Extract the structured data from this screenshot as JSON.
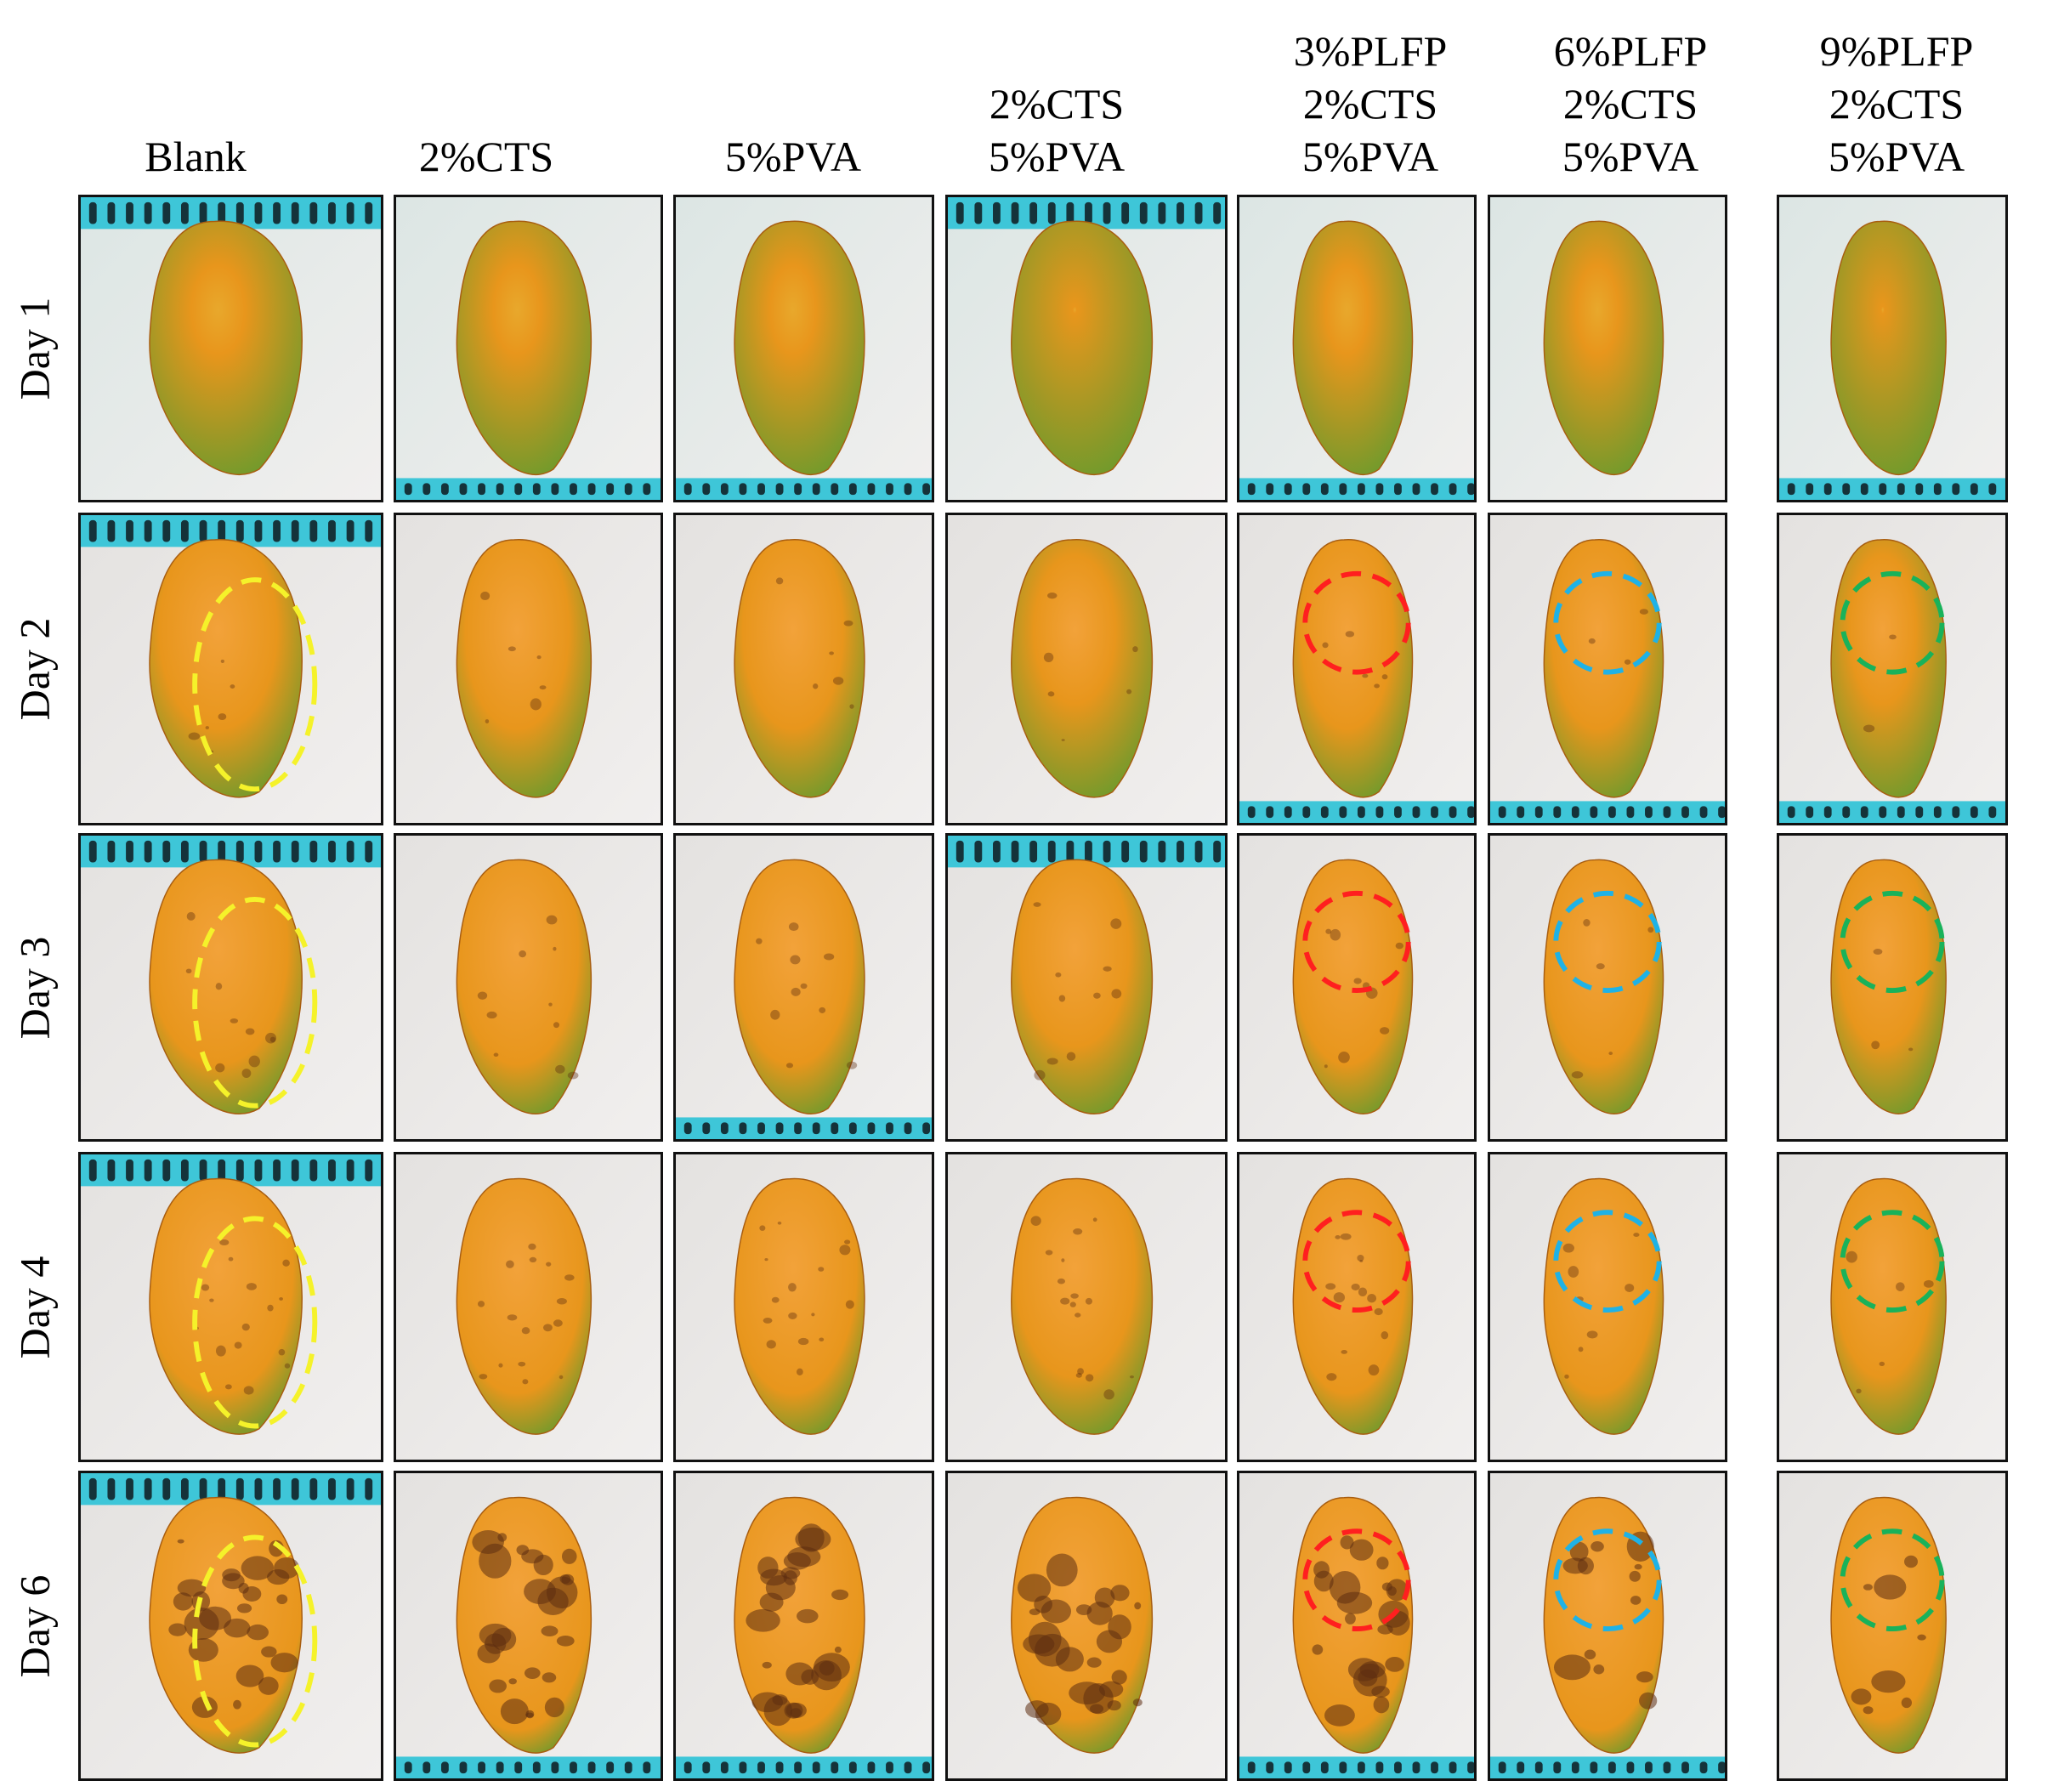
{
  "column_headers": [
    {
      "lines": [
        "Blank"
      ]
    },
    {
      "lines": [
        "2%CTS"
      ]
    },
    {
      "lines": [
        "5%PVA"
      ]
    },
    {
      "lines": [
        "2%CTS",
        "5%PVA"
      ]
    },
    {
      "lines": [
        "3%PLFP",
        "2%CTS",
        "5%PVA"
      ]
    },
    {
      "lines": [
        "6%PLFP",
        "2%CTS",
        "5%PVA"
      ]
    },
    {
      "lines": [
        "9%PLFP",
        "2%CTS",
        "5%PVA"
      ]
    }
  ],
  "row_labels": [
    "Day 1",
    "Day 2",
    "Day 3",
    "Day 4",
    "Day 6"
  ],
  "colors": {
    "blank_circle": "#f5f22a",
    "plfp3_circle": "#ff1f1f",
    "plfp6_circle": "#1fb2e6",
    "plfp9_circle": "#19b25a",
    "basket": "#3ec6d8",
    "paper": "#dfe7e3",
    "mango_ripe": "#e8961c",
    "mango_green": "#6f9a2c",
    "spot": "#5c2d10"
  },
  "photos": [
    [
      {
        "stage": 0,
        "basket": "top",
        "circle": null
      },
      {
        "stage": 0,
        "basket": "bottom",
        "circle": null
      },
      {
        "stage": 0,
        "basket": "bottom",
        "circle": null
      },
      {
        "stage": 0,
        "basket": "top",
        "circle": null
      },
      {
        "stage": 0,
        "basket": "bottom",
        "circle": null
      },
      {
        "stage": 0,
        "basket": "none",
        "circle": null
      },
      {
        "stage": 0,
        "basket": "bottom",
        "circle": null
      }
    ],
    [
      {
        "stage": 1,
        "basket": "top",
        "circle": "blank"
      },
      {
        "stage": 1,
        "basket": "none",
        "circle": null
      },
      {
        "stage": 1,
        "basket": "none",
        "circle": null
      },
      {
        "stage": 1,
        "basket": "none",
        "circle": null
      },
      {
        "stage": 1,
        "basket": "bottom",
        "circle": "plfp3"
      },
      {
        "stage": 1,
        "basket": "bottom",
        "circle": "plfp6"
      },
      {
        "stage": 1,
        "basket": "bottom",
        "circle": "plfp9"
      }
    ],
    [
      {
        "stage": 2,
        "basket": "top",
        "circle": "blank"
      },
      {
        "stage": 2,
        "basket": "none",
        "circle": null
      },
      {
        "stage": 2,
        "basket": "bottom",
        "circle": null
      },
      {
        "stage": 2,
        "basket": "top",
        "circle": null
      },
      {
        "stage": 2,
        "basket": "none",
        "circle": "plfp3"
      },
      {
        "stage": 2,
        "basket": "none",
        "circle": "plfp6"
      },
      {
        "stage": 2,
        "basket": "none",
        "circle": "plfp9"
      }
    ],
    [
      {
        "stage": 3,
        "basket": "top",
        "circle": "blank"
      },
      {
        "stage": 3,
        "basket": "none",
        "circle": null
      },
      {
        "stage": 3,
        "basket": "none",
        "circle": null
      },
      {
        "stage": 3,
        "basket": "none",
        "circle": null
      },
      {
        "stage": 3,
        "basket": "none",
        "circle": "plfp3"
      },
      {
        "stage": 3,
        "basket": "none",
        "circle": "plfp6"
      },
      {
        "stage": 3,
        "basket": "none",
        "circle": "plfp9"
      }
    ],
    [
      {
        "stage": 4,
        "basket": "top",
        "circle": "blank"
      },
      {
        "stage": 4,
        "basket": "bottom",
        "circle": null
      },
      {
        "stage": 4,
        "basket": "bottom",
        "circle": null
      },
      {
        "stage": 4,
        "basket": "none",
        "circle": null
      },
      {
        "stage": 4,
        "basket": "bottom",
        "circle": "plfp3"
      },
      {
        "stage": 4,
        "basket": "bottom",
        "circle": "plfp6"
      },
      {
        "stage": 4,
        "basket": "none",
        "circle": "plfp9"
      }
    ]
  ]
}
